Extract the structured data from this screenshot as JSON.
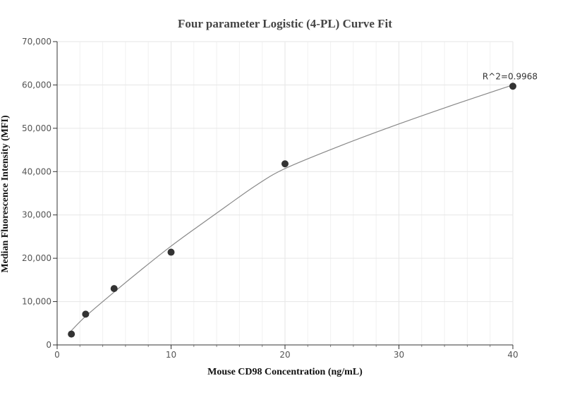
{
  "chart_data": {
    "type": "scatter",
    "title": "Four parameter Logistic (4-PL) Curve Fit",
    "xlabel": "Mouse CD98 Concentration (ng/mL)",
    "ylabel": "Median Fluorescence Intensity (MFI)",
    "xlim": [
      0,
      40
    ],
    "ylim": [
      0,
      70000
    ],
    "x_ticks": [
      0,
      10,
      20,
      30,
      40
    ],
    "x_tick_labels": [
      "0",
      "10",
      "20",
      "30",
      "40"
    ],
    "y_ticks": [
      0,
      10000,
      20000,
      30000,
      40000,
      50000,
      60000,
      70000
    ],
    "y_tick_labels": [
      "0",
      "10,000",
      "20,000",
      "30,000",
      "40,000",
      "50,000",
      "60,000",
      "70,000"
    ],
    "grid": true,
    "series": [
      {
        "type": "scatter",
        "x": [
          1.25,
          2.5,
          5,
          10,
          20,
          40
        ],
        "y": [
          2500,
          7100,
          13000,
          21400,
          41800,
          59700
        ]
      },
      {
        "type": "line",
        "x": [
          1.25,
          2.5,
          5,
          7.5,
          10,
          12.5,
          15,
          17.5,
          20,
          25,
          30,
          35,
          40
        ],
        "y": [
          3300,
          6600,
          12200,
          17600,
          22800,
          27600,
          32300,
          36900,
          40700,
          46100,
          51000,
          55600,
          60000
        ]
      }
    ],
    "annotations": [
      {
        "text": "R^2=0.9968",
        "x": 40,
        "y": 59700
      }
    ],
    "colors": {
      "points": "#333333",
      "fit_line": "#888888",
      "grid": "#e6e6e6"
    }
  }
}
